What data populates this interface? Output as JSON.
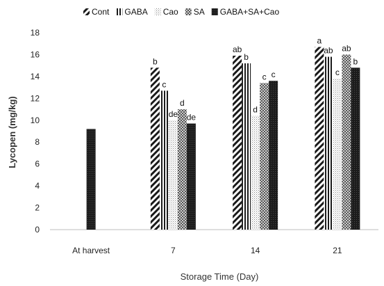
{
  "chart_data": {
    "type": "bar",
    "xlabel": "Storage Time (Day)",
    "ylabel": "Lycopen (mg/kg)",
    "ylim": [
      0,
      18
    ],
    "yticks": [
      "0",
      "2",
      "4",
      "6",
      "8",
      "10",
      "12",
      "14",
      "16",
      "18"
    ],
    "grid": false,
    "legend_position": "top",
    "categories": [
      "At harvest",
      "7",
      "14",
      "21"
    ],
    "series": [
      {
        "name": "Cont",
        "pattern": "diagonal-hatch",
        "values": [
          null,
          14.8,
          15.9,
          16.7
        ],
        "labels": [
          null,
          "b",
          "ab",
          "a"
        ]
      },
      {
        "name": "GABA",
        "pattern": "vertical-stripes",
        "values": [
          null,
          12.7,
          15.2,
          15.8
        ],
        "labels": [
          null,
          "c",
          "b",
          "ab"
        ]
      },
      {
        "name": "Cao",
        "pattern": "fine-dots",
        "values": [
          null,
          10.0,
          10.4,
          13.8
        ],
        "labels": [
          null,
          "de",
          "d",
          "c"
        ]
      },
      {
        "name": "SA",
        "pattern": "checker",
        "values": [
          null,
          11.0,
          13.4,
          16.0
        ],
        "labels": [
          null,
          "d",
          "c",
          "ab"
        ]
      },
      {
        "name": "GABA+SA+Cao",
        "pattern": "solid-dark",
        "values": [
          9.2,
          9.7,
          13.6,
          14.8
        ],
        "labels": [
          null,
          "de",
          "c",
          "b"
        ]
      }
    ]
  }
}
